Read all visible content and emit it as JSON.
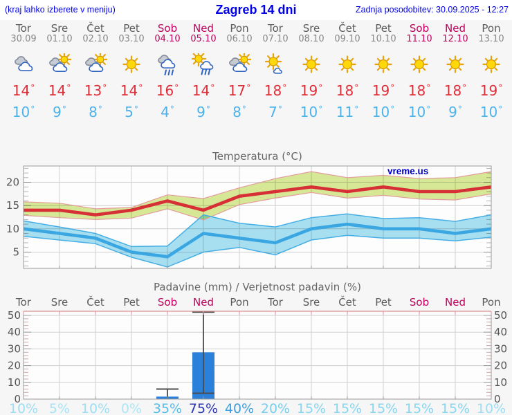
{
  "header": {
    "left": "(kraj lahko izberete v meniju)",
    "title": "Zagreb 14 dni",
    "updated": "Zadnja posodobitev: 30.09.2025 - 12:27"
  },
  "colors": {
    "weekend": "#bf005c",
    "weekday": "#5a5a5a",
    "date": "#878787",
    "high_temp": "#de2e39",
    "low_temp": "#4db2e9",
    "header_text": "#0000e8",
    "grid": "#cfcfcf",
    "axis": "#9a9a9a"
  },
  "symbols": {
    "degree": "°",
    "percent": "%"
  },
  "days": [
    {
      "name": "Tor",
      "date": "30.09",
      "weekend": false,
      "icon": "cloudy",
      "high": 14,
      "low": 10
    },
    {
      "name": "Sre",
      "date": "01.10",
      "weekend": false,
      "icon": "partly",
      "high": 14,
      "low": 9
    },
    {
      "name": "Čet",
      "date": "02.10",
      "weekend": false,
      "icon": "partly",
      "high": 13,
      "low": 8
    },
    {
      "name": "Pet",
      "date": "03.10",
      "weekend": false,
      "icon": "sunny",
      "high": 14,
      "low": 5
    },
    {
      "name": "Sob",
      "date": "04.10",
      "weekend": true,
      "icon": "rain",
      "high": 16,
      "low": 4
    },
    {
      "name": "Ned",
      "date": "05.10",
      "weekend": true,
      "icon": "sun-rain",
      "high": 14,
      "low": 9
    },
    {
      "name": "Pon",
      "date": "06.10",
      "weekend": false,
      "icon": "partly",
      "high": 17,
      "low": 8
    },
    {
      "name": "Tor",
      "date": "07.10",
      "weekend": false,
      "icon": "mostly-sunny",
      "high": 18,
      "low": 7
    },
    {
      "name": "Sre",
      "date": "08.10",
      "weekend": false,
      "icon": "sunny",
      "high": 19,
      "low": 10
    },
    {
      "name": "Čet",
      "date": "09.10",
      "weekend": false,
      "icon": "sunny",
      "high": 18,
      "low": 11
    },
    {
      "name": "Pet",
      "date": "10.10",
      "weekend": false,
      "icon": "sunny",
      "high": 19,
      "low": 10
    },
    {
      "name": "Sob",
      "date": "11.10",
      "weekend": true,
      "icon": "sunny",
      "high": 18,
      "low": 10
    },
    {
      "name": "Ned",
      "date": "12.10",
      "weekend": true,
      "icon": "sunny",
      "high": 18,
      "low": 9
    },
    {
      "name": "Pon",
      "date": "13.10",
      "weekend": false,
      "icon": "sunny",
      "high": 19,
      "low": 10
    }
  ],
  "chart_data": [
    {
      "type": "area",
      "title": "Temperatura (°C)",
      "watermark": "vreme.us",
      "ylim": [
        1.5,
        23.5
      ],
      "yticks": [
        5,
        10,
        15,
        20
      ],
      "grid": true,
      "series": [
        {
          "name": "high",
          "color": "#d62f35",
          "values": [
            14,
            14,
            13,
            14,
            16,
            14,
            17,
            18,
            19,
            18,
            19,
            18,
            18,
            19
          ]
        },
        {
          "name": "high_range_max",
          "values": [
            15.8,
            15.5,
            14.3,
            14.6,
            17.3,
            16.5,
            18.8,
            20.8,
            22.3,
            21.0,
            21.5,
            20.8,
            21.0,
            22.3
          ]
        },
        {
          "name": "high_range_min",
          "values": [
            12.9,
            12.4,
            12.0,
            12.3,
            14.3,
            11.9,
            15.2,
            16.6,
            17.8,
            16.6,
            17.2,
            16.4,
            16.2,
            17.5
          ]
        },
        {
          "name": "low",
          "color": "#3aa6e2",
          "values": [
            10,
            9,
            8,
            5,
            4,
            9,
            8,
            7,
            10,
            11,
            10,
            10,
            9,
            10
          ]
        },
        {
          "name": "low_range_max",
          "values": [
            11.7,
            10.4,
            9.0,
            6.2,
            6.3,
            13.0,
            11.2,
            10.4,
            12.4,
            13.2,
            12.2,
            12.4,
            11.6,
            13.0
          ]
        },
        {
          "name": "low_range_min",
          "values": [
            8.4,
            7.6,
            6.8,
            3.9,
            1.8,
            5.0,
            6.0,
            4.4,
            7.6,
            8.6,
            8.0,
            8.0,
            7.4,
            8.2
          ]
        }
      ],
      "band_colors": {
        "high": "#d8ea97",
        "high_edge": "#e49b9b",
        "low": "#a9e1f2",
        "low_edge": "#45aee5"
      }
    },
    {
      "type": "bar",
      "title": "Padavine (mm) / Verjetnost padavin (%)",
      "categories": [
        "Tor",
        "Sre",
        "Čet",
        "Pet",
        "Sob",
        "Ned",
        "Pon",
        "Tor",
        "Sre",
        "Čet",
        "Pet",
        "Sob",
        "Ned",
        "Pon"
      ],
      "weekend_flags": [
        false,
        false,
        false,
        false,
        true,
        true,
        false,
        false,
        false,
        false,
        false,
        true,
        true,
        false
      ],
      "ylim": [
        0,
        52.5
      ],
      "yticks": [
        0,
        10,
        20,
        30,
        40,
        50
      ],
      "precip_mm": [
        0,
        0,
        0,
        0,
        1.5,
        28,
        0,
        0,
        0,
        0,
        0,
        0,
        0,
        0
      ],
      "whisker_high": [
        null,
        null,
        null,
        null,
        6,
        52,
        null,
        null,
        null,
        null,
        null,
        null,
        null,
        null
      ],
      "whisker_low": [
        null,
        null,
        null,
        null,
        0,
        3.5,
        null,
        null,
        null,
        null,
        null,
        null,
        null,
        null
      ],
      "probability_pct": [
        10,
        5,
        10,
        0,
        35,
        75,
        40,
        20,
        15,
        15,
        15,
        15,
        15,
        10
      ],
      "prob_colors": [
        "#9cdef4",
        "#a6e3f6",
        "#9cdef4",
        "#ace6f7",
        "#54bded",
        "#2936b6",
        "#3f9edd",
        "#76cfee",
        "#85d6f1",
        "#85d6f1",
        "#85d6f1",
        "#85d6f1",
        "#85d6f1",
        "#9cdef4"
      ],
      "bar_color": "#2b80d9",
      "whisker_color": "#4b4b4b"
    }
  ]
}
